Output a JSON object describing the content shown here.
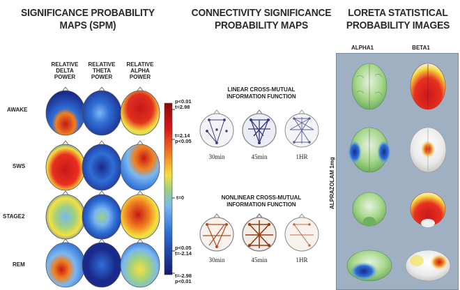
{
  "spm": {
    "title_line1": "SIGNIFICANCE PROBABILITY",
    "title_line2": "MAPS (SPM)",
    "columns": [
      {
        "line1": "RELATIVE",
        "line2": "DELTA",
        "line3": "POWER"
      },
      {
        "line1": "RELATIVE",
        "line2": "THETA",
        "line3": "POWER"
      },
      {
        "line1": "RELATIVE",
        "line2": "ALPHA",
        "line3": "POWER"
      }
    ],
    "rows": [
      "AWAKE",
      "SWS",
      "STAGE2",
      "REM"
    ],
    "colorbar": {
      "top_p": "p<0.01",
      "top_t": "t=2.98",
      "upper_t": "t=2.14",
      "upper_p": "p<0.05",
      "zero": "t=0",
      "lower_p": "p<0.05",
      "lower_t": "t=-2.14",
      "bottom_t": "t=-2.98",
      "bottom_p": "p<0.01"
    }
  },
  "connectivity": {
    "title_line1": "CONNECTIVITY SIGNIFICANCE",
    "title_line2": "PROBABILITY MAPS",
    "linear_line1": "LINEAR CROSS-MUTUAL",
    "linear_line2": "INFORMATION FUNCTION",
    "nonlinear_line1": "NONLINEAR CROSS-MUTUAL",
    "nonlinear_line2": "INFORMATION FUNCTION",
    "times": [
      "30min",
      "45min",
      "1HR"
    ]
  },
  "loreta": {
    "title_line1": "LORETA STATISTICAL",
    "title_line2": "PROBABILITY IMAGES",
    "col1": "ALPHA1",
    "col2": "BETA1",
    "side_label": "ALPRAZOLAM 1mg"
  },
  "colors": {
    "deep_blue": "#1a2a8c",
    "blue": "#2f6fd6",
    "light_blue": "#7ab8f0",
    "green": "#9fd080",
    "yellow": "#f5e040",
    "orange": "#f08020",
    "red": "#c81818",
    "linear_lines": "#3a3a8a",
    "nonlinear_lines": "#b84a1a",
    "loreta_bg": "#9fb0c2"
  }
}
